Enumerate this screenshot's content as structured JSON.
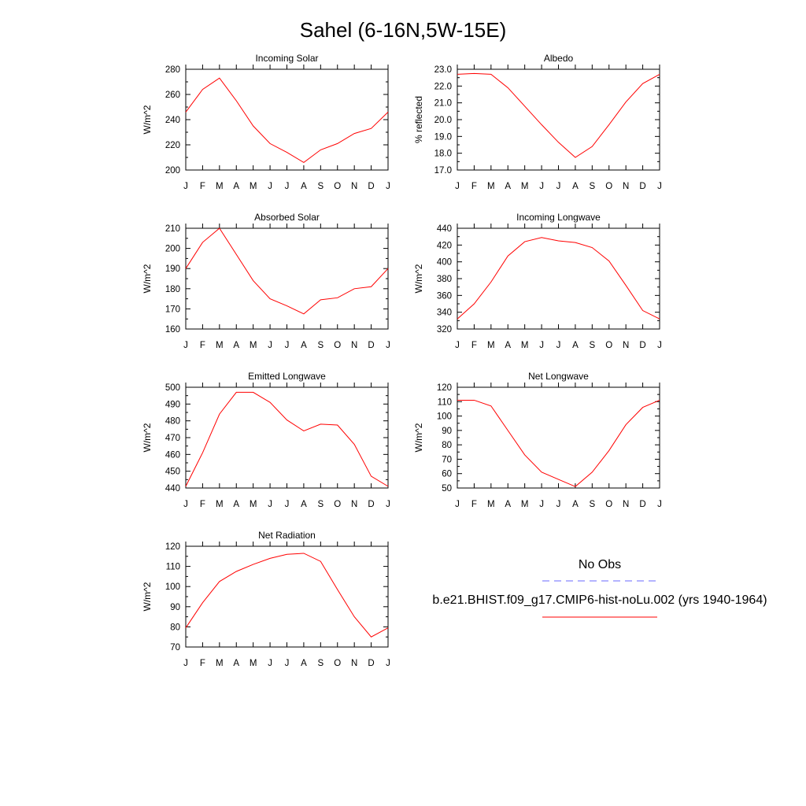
{
  "figure": {
    "title": "Sahel (6-16N,5W-15E)"
  },
  "legend": {
    "entries": [
      {
        "label": "No Obs",
        "color": "#0000ff",
        "style": "dashed"
      },
      {
        "label": "b.e21.BHIST.f09_g17.CMIP6-hist-noLu.002 (yrs 1940-1964)",
        "color": "#ff0000",
        "style": "solid"
      }
    ]
  },
  "chart_data": [
    {
      "id": "incoming-solar",
      "type": "line",
      "title": "Incoming Solar",
      "ylabel": "W/m^2",
      "xlabel": "",
      "categories": [
        "J",
        "F",
        "M",
        "A",
        "M",
        "J",
        "J",
        "A",
        "S",
        "O",
        "N",
        "D",
        "J"
      ],
      "ylim": [
        200,
        280
      ],
      "yticks": [
        200,
        220,
        240,
        260,
        280
      ],
      "ytick_labels": [
        "200",
        "220",
        "240",
        "260",
        "280"
      ],
      "series": [
        {
          "color": "#ff0000",
          "values": [
            246,
            264,
            273,
            255,
            235,
            221,
            214,
            206,
            216,
            221,
            229,
            233,
            246
          ]
        }
      ]
    },
    {
      "id": "albedo",
      "type": "line",
      "title": "Albedo",
      "ylabel": "% reflected",
      "xlabel": "",
      "categories": [
        "J",
        "F",
        "M",
        "A",
        "M",
        "J",
        "J",
        "A",
        "S",
        "O",
        "N",
        "D",
        "J"
      ],
      "ylim": [
        17.0,
        23.0
      ],
      "yticks": [
        17,
        18,
        19,
        20,
        21,
        22,
        23
      ],
      "ytick_labels": [
        "17.0",
        "18.0",
        "19.0",
        "20.0",
        "21.0",
        "22.0",
        "23.0"
      ],
      "series": [
        {
          "color": "#ff0000",
          "values": [
            22.7,
            22.75,
            22.7,
            21.9,
            20.8,
            19.7,
            18.65,
            17.75,
            18.4,
            19.7,
            21.05,
            22.15,
            22.7
          ]
        }
      ]
    },
    {
      "id": "absorbed-solar",
      "type": "line",
      "title": "Absorbed Solar",
      "ylabel": "W/m^2",
      "xlabel": "",
      "categories": [
        "J",
        "F",
        "M",
        "A",
        "M",
        "J",
        "J",
        "A",
        "S",
        "O",
        "N",
        "D",
        "J"
      ],
      "ylim": [
        160,
        210
      ],
      "yticks": [
        160,
        170,
        180,
        190,
        200,
        210
      ],
      "ytick_labels": [
        "160",
        "170",
        "180",
        "190",
        "200",
        "210"
      ],
      "series": [
        {
          "color": "#ff0000",
          "values": [
            190,
            203,
            210,
            197,
            184,
            175,
            171.5,
            167.5,
            174.5,
            175.5,
            180,
            181,
            190
          ]
        }
      ]
    },
    {
      "id": "incoming-longwave",
      "type": "line",
      "title": "Incoming Longwave",
      "ylabel": "W/m^2",
      "xlabel": "",
      "categories": [
        "J",
        "F",
        "M",
        "A",
        "M",
        "J",
        "J",
        "A",
        "S",
        "O",
        "N",
        "D",
        "J"
      ],
      "ylim": [
        320,
        440
      ],
      "yticks": [
        320,
        340,
        360,
        380,
        400,
        420,
        440
      ],
      "ytick_labels": [
        "320",
        "340",
        "360",
        "380",
        "400",
        "420",
        "440"
      ],
      "series": [
        {
          "color": "#ff0000",
          "values": [
            332,
            350,
            376,
            407,
            424,
            429,
            425,
            423,
            417,
            401,
            372,
            342,
            332
          ]
        }
      ]
    },
    {
      "id": "emitted-longwave",
      "type": "line",
      "title": "Emitted Longwave",
      "ylabel": "W/m^2",
      "xlabel": "",
      "categories": [
        "J",
        "F",
        "M",
        "A",
        "M",
        "J",
        "J",
        "A",
        "S",
        "O",
        "N",
        "D",
        "J"
      ],
      "ylim": [
        440,
        500
      ],
      "yticks": [
        440,
        450,
        460,
        470,
        480,
        490,
        500
      ],
      "ytick_labels": [
        "440",
        "450",
        "460",
        "470",
        "480",
        "490",
        "500"
      ],
      "series": [
        {
          "color": "#ff0000",
          "values": [
            441,
            461,
            484,
            497,
            497,
            491,
            480.5,
            474,
            478,
            477.5,
            466,
            447,
            441
          ]
        }
      ]
    },
    {
      "id": "net-longwave",
      "type": "line",
      "title": "Net Longwave",
      "ylabel": "W/m^2",
      "xlabel": "",
      "categories": [
        "J",
        "F",
        "M",
        "A",
        "M",
        "J",
        "J",
        "A",
        "S",
        "O",
        "N",
        "D",
        "J"
      ],
      "ylim": [
        50,
        120
      ],
      "yticks": [
        50,
        60,
        70,
        80,
        90,
        100,
        110,
        120
      ],
      "ytick_labels": [
        "50",
        "60",
        "70",
        "80",
        "90",
        "100",
        "110",
        "120"
      ],
      "series": [
        {
          "color": "#ff0000",
          "values": [
            111,
            111,
            107,
            90,
            73,
            61,
            56,
            51,
            61,
            76,
            94,
            106,
            111
          ]
        }
      ]
    },
    {
      "id": "net-radiation",
      "type": "line",
      "title": "Net Radiation",
      "ylabel": "W/m^2",
      "xlabel": "",
      "categories": [
        "J",
        "F",
        "M",
        "A",
        "M",
        "J",
        "J",
        "A",
        "S",
        "O",
        "N",
        "D",
        "J"
      ],
      "ylim": [
        70,
        120
      ],
      "yticks": [
        70,
        80,
        90,
        100,
        110,
        120
      ],
      "ytick_labels": [
        "70",
        "80",
        "90",
        "100",
        "110",
        "120"
      ],
      "series": [
        {
          "color": "#ff0000",
          "values": [
            79.5,
            92,
            102.5,
            107.5,
            111,
            114,
            116,
            116.5,
            112.5,
            98.5,
            85,
            75,
            79.5
          ]
        }
      ]
    }
  ]
}
